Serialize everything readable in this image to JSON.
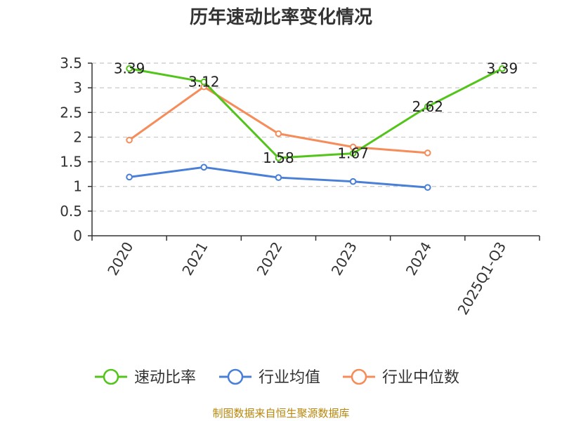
{
  "chart_data": {
    "type": "line",
    "title": "历年速动比率变化情况",
    "categories": [
      "2020",
      "2021",
      "2022",
      "2023",
      "2024",
      "2025Q1-Q3"
    ],
    "ylim": [
      0,
      3.5
    ],
    "yticks": [
      "0",
      "0.5",
      "1",
      "1.5",
      "2",
      "2.5",
      "3",
      "3.5"
    ],
    "grid": "horizontal-dashed",
    "legend_position": "bottom",
    "series": [
      {
        "name": "速动比率",
        "color": "#52c41a",
        "values": [
          3.39,
          3.12,
          1.58,
          1.67,
          2.62,
          3.39
        ],
        "labels": [
          "3.39",
          "3.12",
          "1.58",
          "1.67",
          "2.62",
          "3.39"
        ]
      },
      {
        "name": "行业均值",
        "color": "#4a7fd8",
        "values": [
          1.19,
          1.39,
          1.18,
          1.1,
          0.98,
          null
        ]
      },
      {
        "name": "行业中位数",
        "color": "#f58c5a",
        "values": [
          1.94,
          3.02,
          2.07,
          1.8,
          1.68,
          null
        ]
      }
    ],
    "source": "制图数据来自恒生聚源数据库"
  }
}
